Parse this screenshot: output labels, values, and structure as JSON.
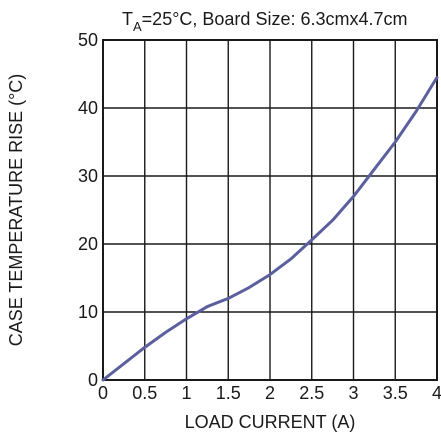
{
  "chart_data": {
    "type": "line",
    "title": {
      "prefix": "T",
      "subscript": "A",
      "rest": "=25°C, Board Size: 6.3cmx4.7cm"
    },
    "xlabel": "LOAD CURRENT (A)",
    "ylabel": "CASE TEMPERATURE RISE (°C)",
    "xlim": [
      0,
      4
    ],
    "ylim": [
      0,
      50
    ],
    "x_ticks": [
      "0",
      "0.5",
      "1",
      "1.5",
      "2",
      "2.5",
      "3",
      "3.5",
      "4"
    ],
    "y_ticks": [
      "0",
      "10",
      "20",
      "30",
      "40",
      "50"
    ],
    "grid": true,
    "line_color": "#5b5f9e",
    "series": [
      {
        "x": [
          0,
          0.25,
          0.5,
          0.75,
          1.0,
          1.25,
          1.5,
          1.75,
          2.0,
          2.25,
          2.5,
          2.75,
          3.0,
          3.25,
          3.5,
          3.75,
          4.0
        ],
        "values": [
          0,
          2.4,
          4.8,
          7.0,
          9.0,
          10.8,
          12.0,
          13.6,
          15.5,
          17.8,
          20.6,
          23.5,
          27.0,
          31.0,
          35.0,
          39.5,
          44.5
        ]
      }
    ]
  }
}
